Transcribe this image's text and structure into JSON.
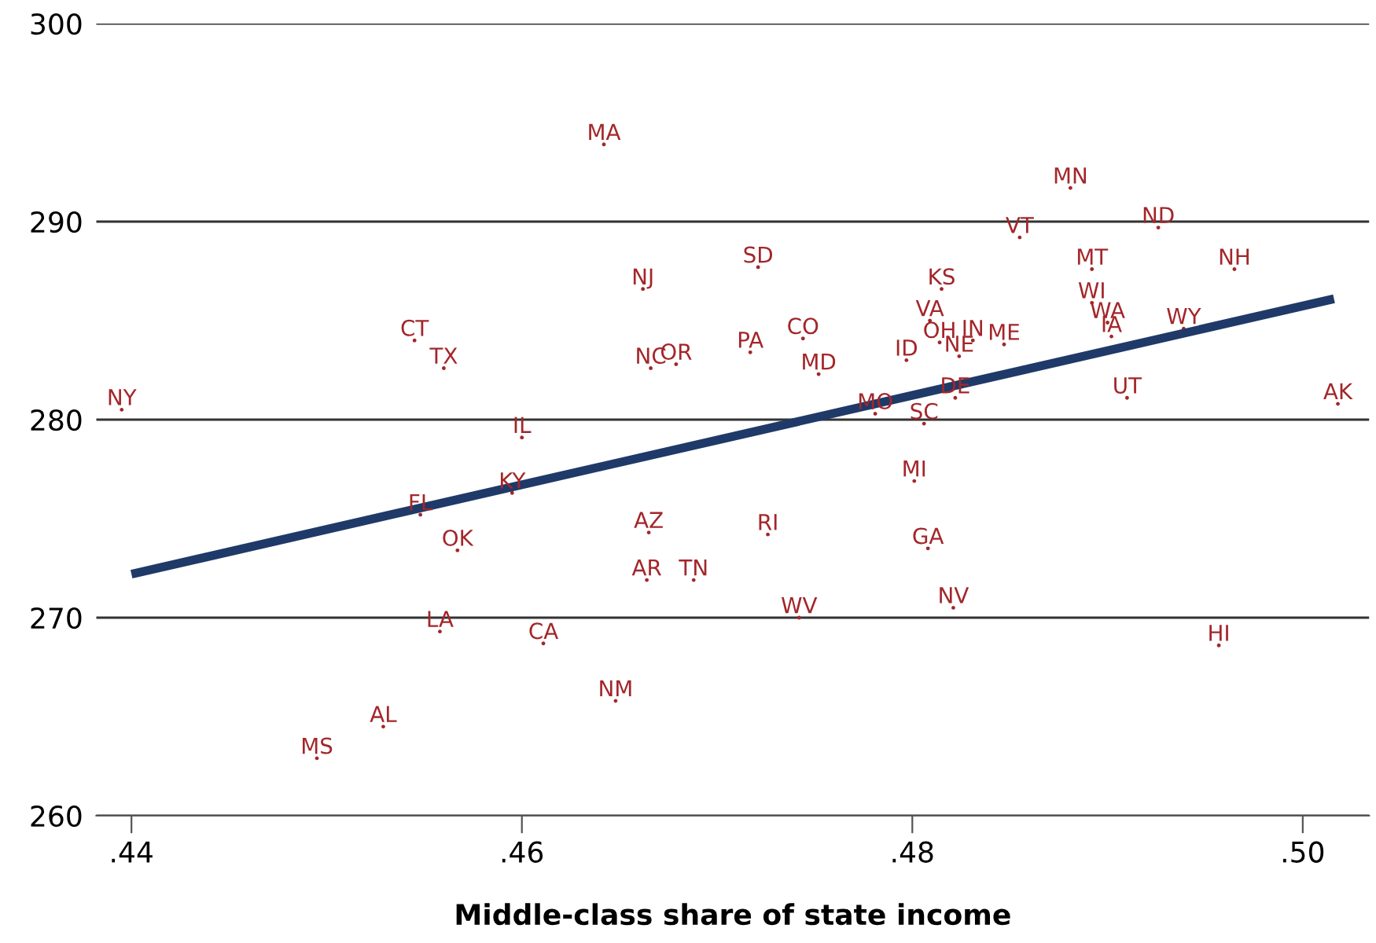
{
  "chart_data": {
    "type": "scatter",
    "xlabel": "Middle-class share of state income",
    "xlim": [
      0.4382,
      0.5034
    ],
    "xticks": [
      {
        "value": 0.44,
        "label": ".44"
      },
      {
        "value": 0.46,
        "label": ".46"
      },
      {
        "value": 0.48,
        "label": ".48"
      },
      {
        "value": 0.5,
        "label": ".50"
      }
    ],
    "ylim": [
      260,
      300
    ],
    "yticks": [
      260,
      270,
      280,
      290,
      300
    ],
    "grid": "y",
    "series": [
      {
        "color": "#a3262a",
        "marker": "circle",
        "x": [
          0.4642,
          0.4662,
          0.4545,
          0.456,
          0.4666,
          0.4679,
          0.4395,
          0.46,
          0.4721,
          0.4881,
          0.4926,
          0.4855,
          0.4892,
          0.4965,
          0.4815,
          0.4892,
          0.4809,
          0.49,
          0.4939,
          0.4902,
          0.4717,
          0.4744,
          0.4814,
          0.4831,
          0.4824,
          0.4847,
          0.4797,
          0.4752,
          0.4822,
          0.491,
          0.5018,
          0.4781,
          0.4806,
          0.4801,
          0.4595,
          0.4548,
          0.4665,
          0.4726,
          0.4567,
          0.4808,
          0.4664,
          0.4688,
          0.4821,
          0.4742,
          0.4957,
          0.4558,
          0.4611,
          0.4648,
          0.4529,
          0.4495
        ],
        "values": [
          293.9,
          286.6,
          284.0,
          282.6,
          282.6,
          282.8,
          280.5,
          279.1,
          287.7,
          291.7,
          289.7,
          289.2,
          287.6,
          287.6,
          286.6,
          285.9,
          285.0,
          284.9,
          284.6,
          284.2,
          283.4,
          284.1,
          283.9,
          284.0,
          283.2,
          283.8,
          283.0,
          282.3,
          281.1,
          281.1,
          280.8,
          280.3,
          279.8,
          276.9,
          276.3,
          275.2,
          274.3,
          274.2,
          273.4,
          273.5,
          271.9,
          271.9,
          270.5,
          270.0,
          268.6,
          269.3,
          268.7,
          265.8,
          264.5,
          262.9
        ],
        "value_labels": [
          "MA",
          "NJ",
          "CT",
          "TX",
          "NC",
          "OR",
          "NY",
          "IL",
          "SD",
          "MN",
          "ND",
          "VT",
          "MT",
          "NH",
          "KS",
          "WI",
          "VA",
          "WA",
          "WY",
          "IA",
          "PA",
          "CO",
          "OH",
          "IN",
          "NE",
          "ME",
          "ID",
          "MD",
          "DE",
          "UT",
          "AK",
          "MO",
          "SC",
          "MI",
          "KY",
          "FL",
          "AZ",
          "RI",
          "OK",
          "GA",
          "AR",
          "TN",
          "NV",
          "WV",
          "HI",
          "LA",
          "CA",
          "NM",
          "AL",
          "MS"
        ]
      },
      {
        "type": "line",
        "color": "#1f3a68",
        "x": [
          0.44,
          0.5016
        ],
        "values": [
          272.2,
          286.1
        ]
      }
    ]
  }
}
